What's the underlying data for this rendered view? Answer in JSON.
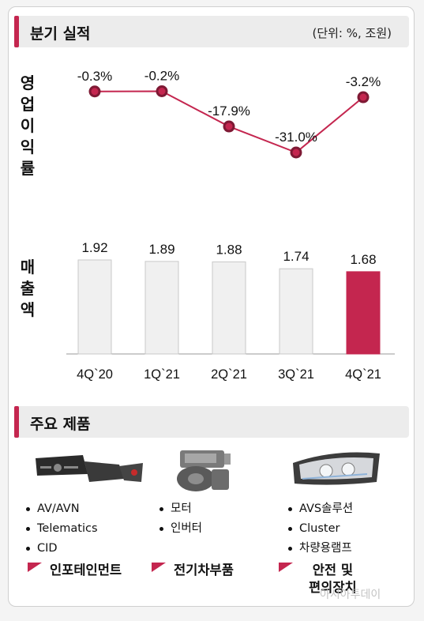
{
  "performance": {
    "title": "분기 실적",
    "unit": "(단위: %, 조원)",
    "op_margin_label": [
      "영",
      "업",
      "이",
      "익",
      "률"
    ],
    "sales_label": [
      "매",
      "출",
      "액"
    ]
  },
  "chart_data": [
    {
      "type": "line",
      "ylabel": "영업이익률",
      "x": [
        "4Q`20",
        "1Q`21",
        "2Q`21",
        "3Q`21",
        "4Q`21"
      ],
      "values": [
        -0.3,
        -0.2,
        -17.9,
        -31.0,
        -3.2
      ],
      "data_labels": [
        "-0.3%",
        "-0.2%",
        "-17.9%",
        "-31.0%",
        "-3.2%"
      ],
      "color": "#c4264f",
      "marker_fill": "#c4264f",
      "marker_stroke": "#7e1934"
    },
    {
      "type": "bar",
      "ylabel": "매출액",
      "categories": [
        "4Q`20",
        "1Q`21",
        "2Q`21",
        "3Q`21",
        "4Q`21"
      ],
      "values": [
        1.92,
        1.89,
        1.88,
        1.74,
        1.68
      ],
      "data_labels": [
        "1.92",
        "1.89",
        "1.88",
        "1.74",
        "1.68"
      ],
      "bar_color": "#f0f0f0",
      "highlight_color": "#c4264f",
      "highlight_index": 4
    }
  ],
  "products": {
    "title": "주요 제품",
    "columns": [
      {
        "icon": "infotainment-panel-icon",
        "items": [
          "AV/AVN",
          "Telematics",
          "CID"
        ],
        "category": "인포테인먼트"
      },
      {
        "icon": "electric-motor-icon",
        "items": [
          "모터",
          "인버터"
        ],
        "category": "전기차부품"
      },
      {
        "icon": "headlamp-icon",
        "items": [
          "AVS솔루션",
          "Cluster",
          "차량용램프"
        ],
        "category": "안전 및\n편의장치"
      }
    ]
  },
  "watermark": "아시아투데이",
  "colors": {
    "accent": "#c4264f",
    "header_bg": "#ececec"
  }
}
